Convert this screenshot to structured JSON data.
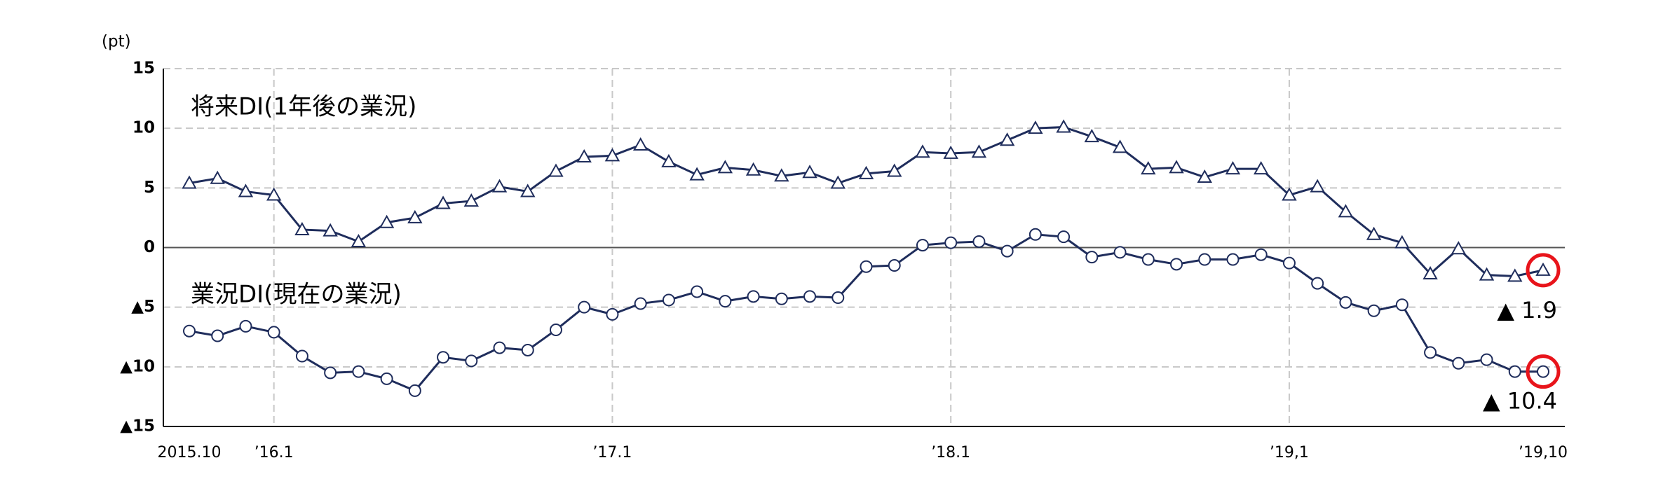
{
  "chart_data": {
    "type": "line",
    "y_label": "(pt)",
    "categories": [
      "2015.10",
      null,
      null,
      "’16.1",
      null,
      null,
      null,
      null,
      null,
      null,
      null,
      null,
      null,
      null,
      null,
      "’17.1",
      null,
      null,
      null,
      null,
      null,
      null,
      null,
      null,
      null,
      null,
      null,
      "’18.1",
      null,
      null,
      null,
      null,
      null,
      null,
      null,
      null,
      null,
      null,
      null,
      "’19,1",
      null,
      null,
      null,
      null,
      null,
      null,
      null,
      null,
      "’19,10"
    ],
    "series": [
      {
        "name": "将来DI(1年後の業況)",
        "color": "#1f2d5c",
        "marker": "triangle",
        "values": [
          5.4,
          5.8,
          4.7,
          4.4,
          1.5,
          1.4,
          0.5,
          2.1,
          2.5,
          3.7,
          3.9,
          5.1,
          4.7,
          6.4,
          7.6,
          7.7,
          8.6,
          7.2,
          6.1,
          6.7,
          6.5,
          6.0,
          6.3,
          5.4,
          6.2,
          6.4,
          8.0,
          7.9,
          8.0,
          9.0,
          10.0,
          10.1,
          9.3,
          8.4,
          6.6,
          6.7,
          5.9,
          6.6,
          6.6,
          4.4,
          5.1,
          3.0,
          1.1,
          0.4,
          -2.2,
          -0.1,
          -2.3,
          -2.4,
          -1.9
        ],
        "value_labels": [
          null,
          null,
          null,
          null,
          null,
          null,
          null,
          null,
          null,
          null,
          null,
          null,
          null,
          null,
          null,
          null,
          null,
          null,
          null,
          null,
          null,
          null,
          null,
          null,
          null,
          null,
          null,
          null,
          null,
          null,
          null,
          null,
          null,
          null,
          null,
          null,
          null,
          null,
          null,
          null,
          null,
          null,
          null,
          null,
          null,
          null,
          null,
          null,
          "▲ 1.9"
        ]
      },
      {
        "name": "業況DI(現在の業況)",
        "color": "#1f2d5c",
        "marker": "circle",
        "values": [
          -7.0,
          -7.4,
          -6.6,
          -7.1,
          -9.1,
          -10.5,
          -10.4,
          -11.0,
          -12.0,
          -9.2,
          -9.5,
          -8.4,
          -8.6,
          -6.9,
          -5.0,
          -5.6,
          -4.7,
          -4.4,
          -3.7,
          -4.5,
          -4.1,
          -4.3,
          -4.1,
          -4.2,
          -1.6,
          -1.5,
          0.2,
          0.4,
          0.5,
          -0.3,
          1.1,
          0.9,
          -0.8,
          -0.4,
          -1.0,
          -1.4,
          -1.0,
          -1.0,
          -0.6,
          -1.3,
          -3.0,
          -4.6,
          -5.3,
          -4.8,
          -8.8,
          -9.7,
          -9.4,
          -10.4,
          -10.4
        ],
        "value_labels": [
          null,
          null,
          null,
          null,
          null,
          null,
          null,
          null,
          null,
          null,
          null,
          null,
          null,
          null,
          null,
          null,
          null,
          null,
          null,
          null,
          null,
          null,
          null,
          null,
          null,
          null,
          null,
          null,
          null,
          null,
          null,
          null,
          null,
          null,
          null,
          null,
          null,
          null,
          null,
          null,
          null,
          null,
          null,
          null,
          null,
          null,
          null,
          null,
          "▲ 10.4"
        ]
      }
    ],
    "ylim": [
      -15,
      15
    ],
    "yticks": [
      15,
      10,
      5,
      0,
      {
        "value": -5,
        "label": "▲5"
      },
      {
        "value": -10,
        "label": "▲10"
      },
      {
        "value": -15,
        "label": "▲15"
      }
    ],
    "grid": true
  }
}
